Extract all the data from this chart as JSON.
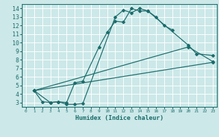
{
  "xlabel": "Humidex (Indice chaleur)",
  "ylabel": "",
  "bg_color": "#cce8e8",
  "grid_color": "#ffffff",
  "line_color": "#1a6b6b",
  "xlim": [
    -0.5,
    23.5
  ],
  "ylim": [
    2.5,
    14.5
  ],
  "xticks": [
    0,
    1,
    2,
    3,
    4,
    5,
    6,
    7,
    8,
    9,
    10,
    11,
    12,
    13,
    14,
    15,
    16,
    17,
    18,
    19,
    20,
    21,
    22,
    23
  ],
  "yticks": [
    3,
    4,
    5,
    6,
    7,
    8,
    9,
    10,
    11,
    12,
    13,
    14
  ],
  "series": [
    {
      "x": [
        1,
        2,
        3,
        4,
        5,
        6,
        7,
        11,
        12,
        13,
        14,
        15,
        16,
        17,
        18
      ],
      "y": [
        4.4,
        3.1,
        3.0,
        3.1,
        2.8,
        2.8,
        2.9,
        13.0,
        13.8,
        13.5,
        14.0,
        13.7,
        13.0,
        12.0,
        11.5
      ]
    },
    {
      "x": [
        1,
        3,
        4,
        5,
        6,
        7,
        9,
        10,
        11,
        12,
        13,
        14,
        15,
        20,
        21,
        23
      ],
      "y": [
        4.4,
        3.0,
        3.1,
        3.0,
        5.3,
        5.5,
        9.5,
        11.2,
        12.5,
        12.4,
        14.0,
        13.7,
        13.7,
        9.7,
        8.7,
        8.5
      ]
    },
    {
      "x": [
        1,
        20,
        23
      ],
      "y": [
        4.4,
        9.5,
        7.8
      ]
    },
    {
      "x": [
        1,
        23
      ],
      "y": [
        4.4,
        7.7
      ]
    }
  ],
  "marker": "D",
  "markersize": 2.5,
  "linewidth": 0.9
}
